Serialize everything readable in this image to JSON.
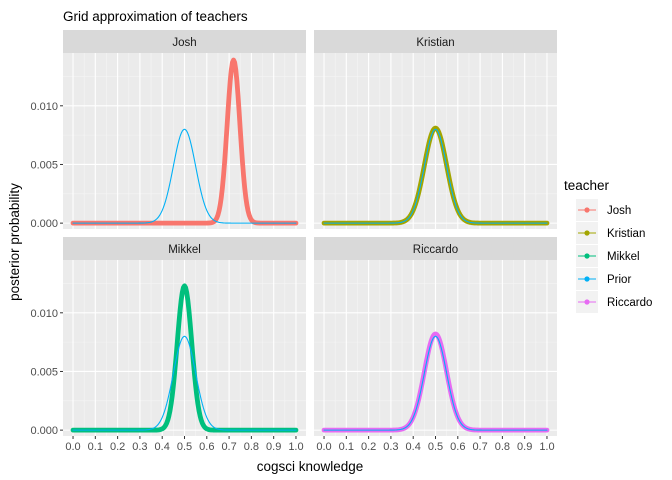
{
  "chart_data": {
    "type": "line",
    "title": "Grid approximation of teachers",
    "xlabel": "cogsci knowledge",
    "ylabel": "posterior probability",
    "xlim": [
      0,
      1
    ],
    "ylim": [
      -0.0005,
      0.0145
    ],
    "x_ticks": [
      "0.0",
      "0.1",
      "0.2",
      "0.3",
      "0.4",
      "0.5",
      "0.6",
      "0.7",
      "0.8",
      "0.9",
      "1.0"
    ],
    "y_ticks": [
      "0.000",
      "0.005",
      "0.010"
    ],
    "grid": true,
    "legend": {
      "title": "teacher",
      "position": "right",
      "entries": [
        {
          "name": "Josh",
          "color": "#F8766D"
        },
        {
          "name": "Kristian",
          "color": "#A3A500"
        },
        {
          "name": "Mikkel",
          "color": "#00BF7D"
        },
        {
          "name": "Prior",
          "color": "#00B0F6"
        },
        {
          "name": "Riccardo",
          "color": "#E76BF3"
        }
      ]
    },
    "panels": [
      {
        "label": "Josh",
        "series": [
          {
            "name": "Josh",
            "color": "#F8766D",
            "thick": true,
            "mu": 0.72,
            "sd": 0.0286,
            "peak": 0.0139
          },
          {
            "name": "Prior",
            "color": "#00B0F6",
            "thick": false,
            "mu": 0.5,
            "sd": 0.05,
            "peak": 0.008
          }
        ]
      },
      {
        "label": "Kristian",
        "series": [
          {
            "name": "Kristian",
            "color": "#A3A500",
            "thick": true,
            "mu": 0.5,
            "sd": 0.05,
            "peak": 0.0081
          },
          {
            "name": "Prior",
            "color": "#00B0F6",
            "thick": false,
            "mu": 0.5,
            "sd": 0.05,
            "peak": 0.008
          }
        ]
      },
      {
        "label": "Mikkel",
        "series": [
          {
            "name": "Mikkel",
            "color": "#00BF7D",
            "thick": true,
            "mu": 0.5,
            "sd": 0.0325,
            "peak": 0.0123
          },
          {
            "name": "Prior",
            "color": "#00B0F6",
            "thick": false,
            "mu": 0.5,
            "sd": 0.05,
            "peak": 0.008
          }
        ]
      },
      {
        "label": "Riccardo",
        "series": [
          {
            "name": "Riccardo",
            "color": "#E76BF3",
            "thick": true,
            "mu": 0.5,
            "sd": 0.05,
            "peak": 0.0082
          },
          {
            "name": "Prior",
            "color": "#00B0F6",
            "thick": false,
            "mu": 0.5,
            "sd": 0.05,
            "peak": 0.008
          }
        ]
      }
    ]
  }
}
